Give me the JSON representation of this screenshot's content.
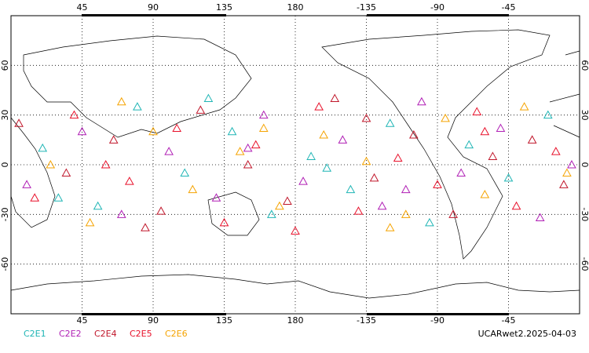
{
  "chart_data": {
    "type": "scatter",
    "footer": "UCARwet2.2025-04-03",
    "xlim": [
      0,
      360
    ],
    "ylim": [
      -90,
      90
    ],
    "xticks": [
      45,
      90,
      135,
      180,
      {
        "value": 225,
        "label": "-135"
      },
      {
        "value": 270,
        "label": "-90"
      },
      {
        "value": 315,
        "label": "-45"
      }
    ],
    "yticks": [
      60,
      30,
      0,
      -30,
      -60
    ],
    "grid": true,
    "series": [
      {
        "name": "C2E1",
        "color": "#1fb5b5",
        "lon": [
          20,
          55,
          80,
          110,
          140,
          165,
          190,
          215,
          240,
          265,
          290,
          315,
          340,
          30,
          125,
          200
        ],
        "lat": [
          10,
          -25,
          35,
          -5,
          20,
          -30,
          5,
          -15,
          25,
          -35,
          12,
          -8,
          30,
          -20,
          40,
          -2
        ]
      },
      {
        "name": "C2E2",
        "color": "#b01fb5",
        "lon": [
          10,
          45,
          70,
          100,
          130,
          160,
          185,
          210,
          235,
          260,
          285,
          310,
          335,
          355,
          150,
          250
        ],
        "lat": [
          -12,
          20,
          -30,
          8,
          -20,
          30,
          -10,
          15,
          -25,
          38,
          -5,
          22,
          -32,
          0,
          10,
          -15
        ]
      },
      {
        "name": "C2E4",
        "color": "#c0162a",
        "lon": [
          5,
          35,
          65,
          95,
          120,
          150,
          175,
          205,
          230,
          255,
          280,
          305,
          330,
          350,
          85,
          225
        ],
        "lat": [
          25,
          -5,
          15,
          -28,
          33,
          0,
          -22,
          40,
          -8,
          18,
          -30,
          5,
          15,
          -12,
          -38,
          28
        ]
      },
      {
        "name": "C2E5",
        "color": "#e8102a",
        "lon": [
          15,
          40,
          75,
          105,
          135,
          155,
          195,
          220,
          245,
          270,
          295,
          320,
          345,
          60,
          180,
          300
        ],
        "lat": [
          -20,
          30,
          -10,
          22,
          -35,
          12,
          35,
          -28,
          4,
          -12,
          32,
          -25,
          8,
          0,
          -40,
          20
        ]
      },
      {
        "name": "C2E6",
        "color": "#f5a300",
        "lon": [
          25,
          50,
          90,
          115,
          145,
          170,
          198,
          225,
          250,
          275,
          300,
          325,
          352,
          70,
          160,
          240
        ],
        "lat": [
          0,
          -35,
          20,
          -15,
          8,
          -25,
          18,
          2,
          -30,
          28,
          -18,
          35,
          -5,
          38,
          22,
          -38
        ]
      }
    ]
  }
}
